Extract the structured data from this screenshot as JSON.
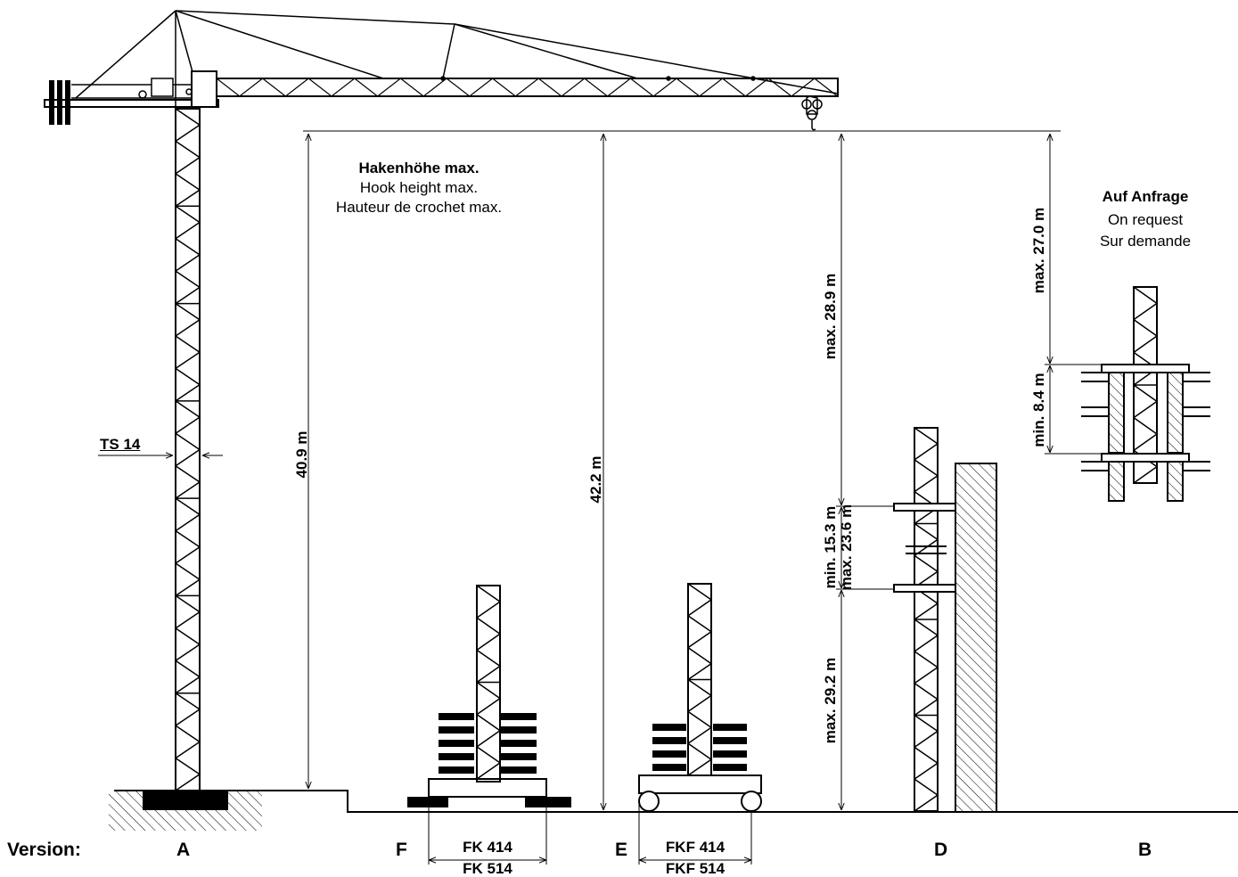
{
  "hook_height": {
    "title": "Hakenhöhe max.",
    "en": "Hook height max.",
    "fr": "Hauteur de crochet max."
  },
  "on_request": {
    "title": "Auf Anfrage",
    "en": "On request",
    "fr": "Sur demande"
  },
  "tower_label": "TS 14",
  "dimensions": {
    "a_height": "40.9 m",
    "e_height": "42.2 m",
    "d_max_top": "max. 28.9 m",
    "d_min_mid": "min. 15.3 m",
    "d_max_mid": "max. 23.6 m",
    "d_max_bottom": "max. 29.2 m",
    "b_max_top": "max. 27.0 m",
    "b_min": "min. 8.4 m"
  },
  "version_label": "Version:",
  "versions": [
    "A",
    "F",
    "E",
    "D",
    "B"
  ],
  "bases": {
    "f_top": "FK 414",
    "f_bottom": "FK 514",
    "e_top": "FKF 414",
    "e_bottom": "FKF 514"
  }
}
